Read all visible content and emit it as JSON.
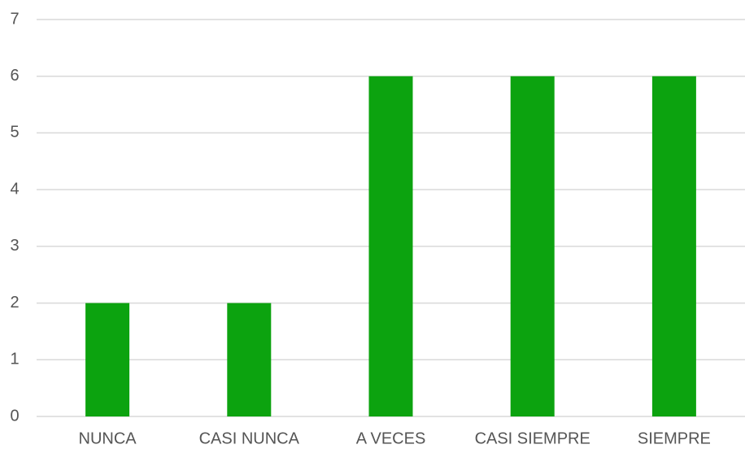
{
  "chart_data": {
    "type": "bar",
    "categories": [
      "NUNCA",
      "CASI NUNCA",
      "A VECES",
      "CASI SIEMPRE",
      "SIEMPRE"
    ],
    "values": [
      2,
      2,
      6,
      6,
      6
    ],
    "color": "#0ca30f",
    "ylim": [
      0,
      7
    ],
    "yticks": [
      0,
      1,
      2,
      3,
      4,
      5,
      6,
      7
    ],
    "grid": true
  }
}
